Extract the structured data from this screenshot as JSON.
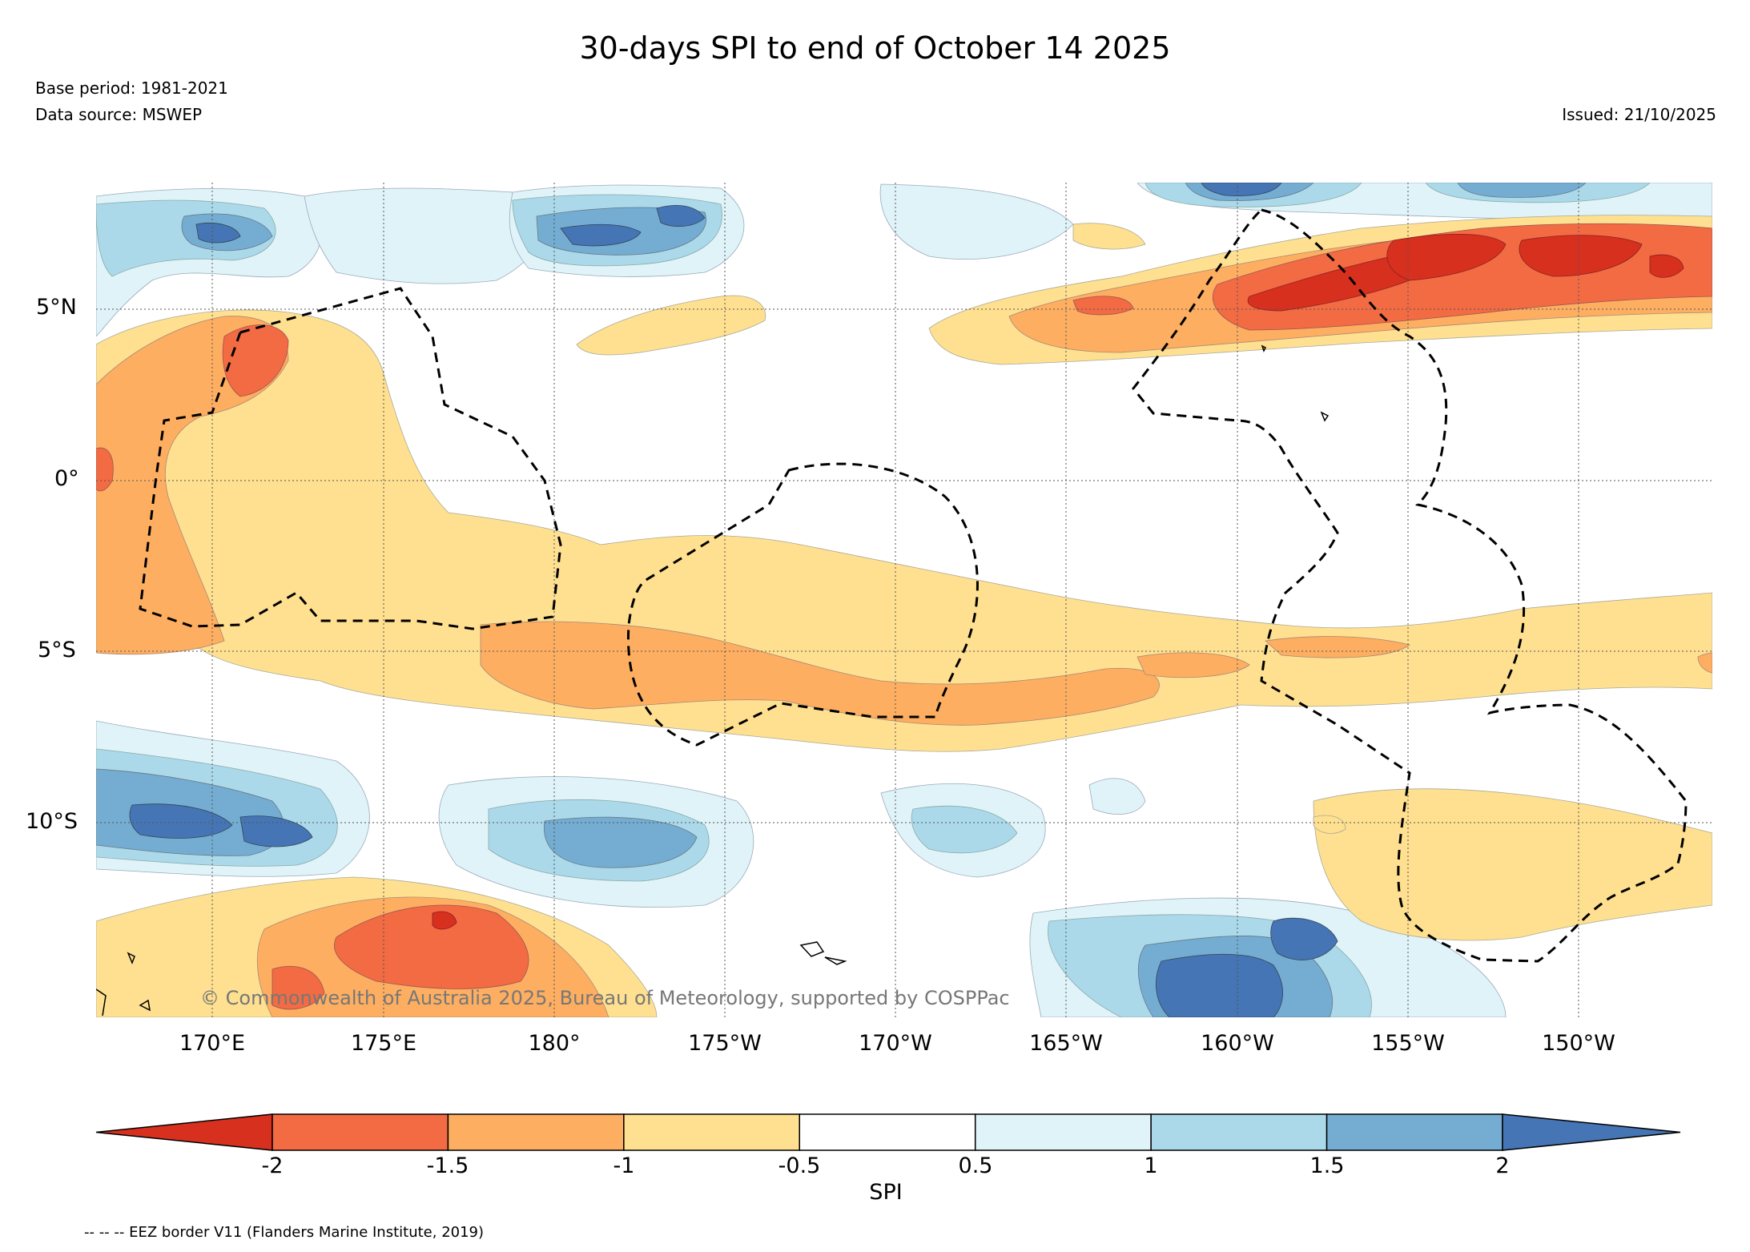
{
  "header": {
    "title": "30-days SPI to end of October 14 2025",
    "base_period": "Base period: 1981-2021",
    "data_source": "Data source: MSWEP",
    "issued": "Issued: 21/10/2025"
  },
  "map": {
    "latitude_labels": [
      "5°N",
      "0°",
      "5°S",
      "10°S"
    ],
    "longitude_labels": [
      "170°E",
      "175°E",
      "180°",
      "175°W",
      "170°W",
      "165°W",
      "160°W",
      "155°W",
      "150°W"
    ],
    "copyright": "© Commonwealth of Australia 2025, Bureau of Meteorology, supported by COSPPac",
    "legend_note": "-- -- -- EEZ border V11 (Flanders Marine Institute, 2019)"
  },
  "colorbar": {
    "label": "SPI",
    "ticks": [
      "-2",
      "-1.5",
      "-1",
      "-0.5",
      "0.5",
      "1",
      "1.5",
      "2"
    ],
    "colors": [
      "#d7301f",
      "#f26b43",
      "#fdae61",
      "#fee090",
      "#ffffff",
      "#e0f3f8",
      "#abd9e9",
      "#74add1",
      "#4575b4"
    ]
  },
  "colors": {
    "dry_extreme": "#d7301f",
    "dry_severe": "#f26b43",
    "dry_moderate": "#fdae61",
    "dry_mild": "#fee090",
    "near_normal": "#ffffff",
    "wet_mild": "#e0f3f8",
    "wet_moderate": "#abd9e9",
    "wet_severe": "#74add1",
    "wet_extreme": "#4575b4"
  }
}
